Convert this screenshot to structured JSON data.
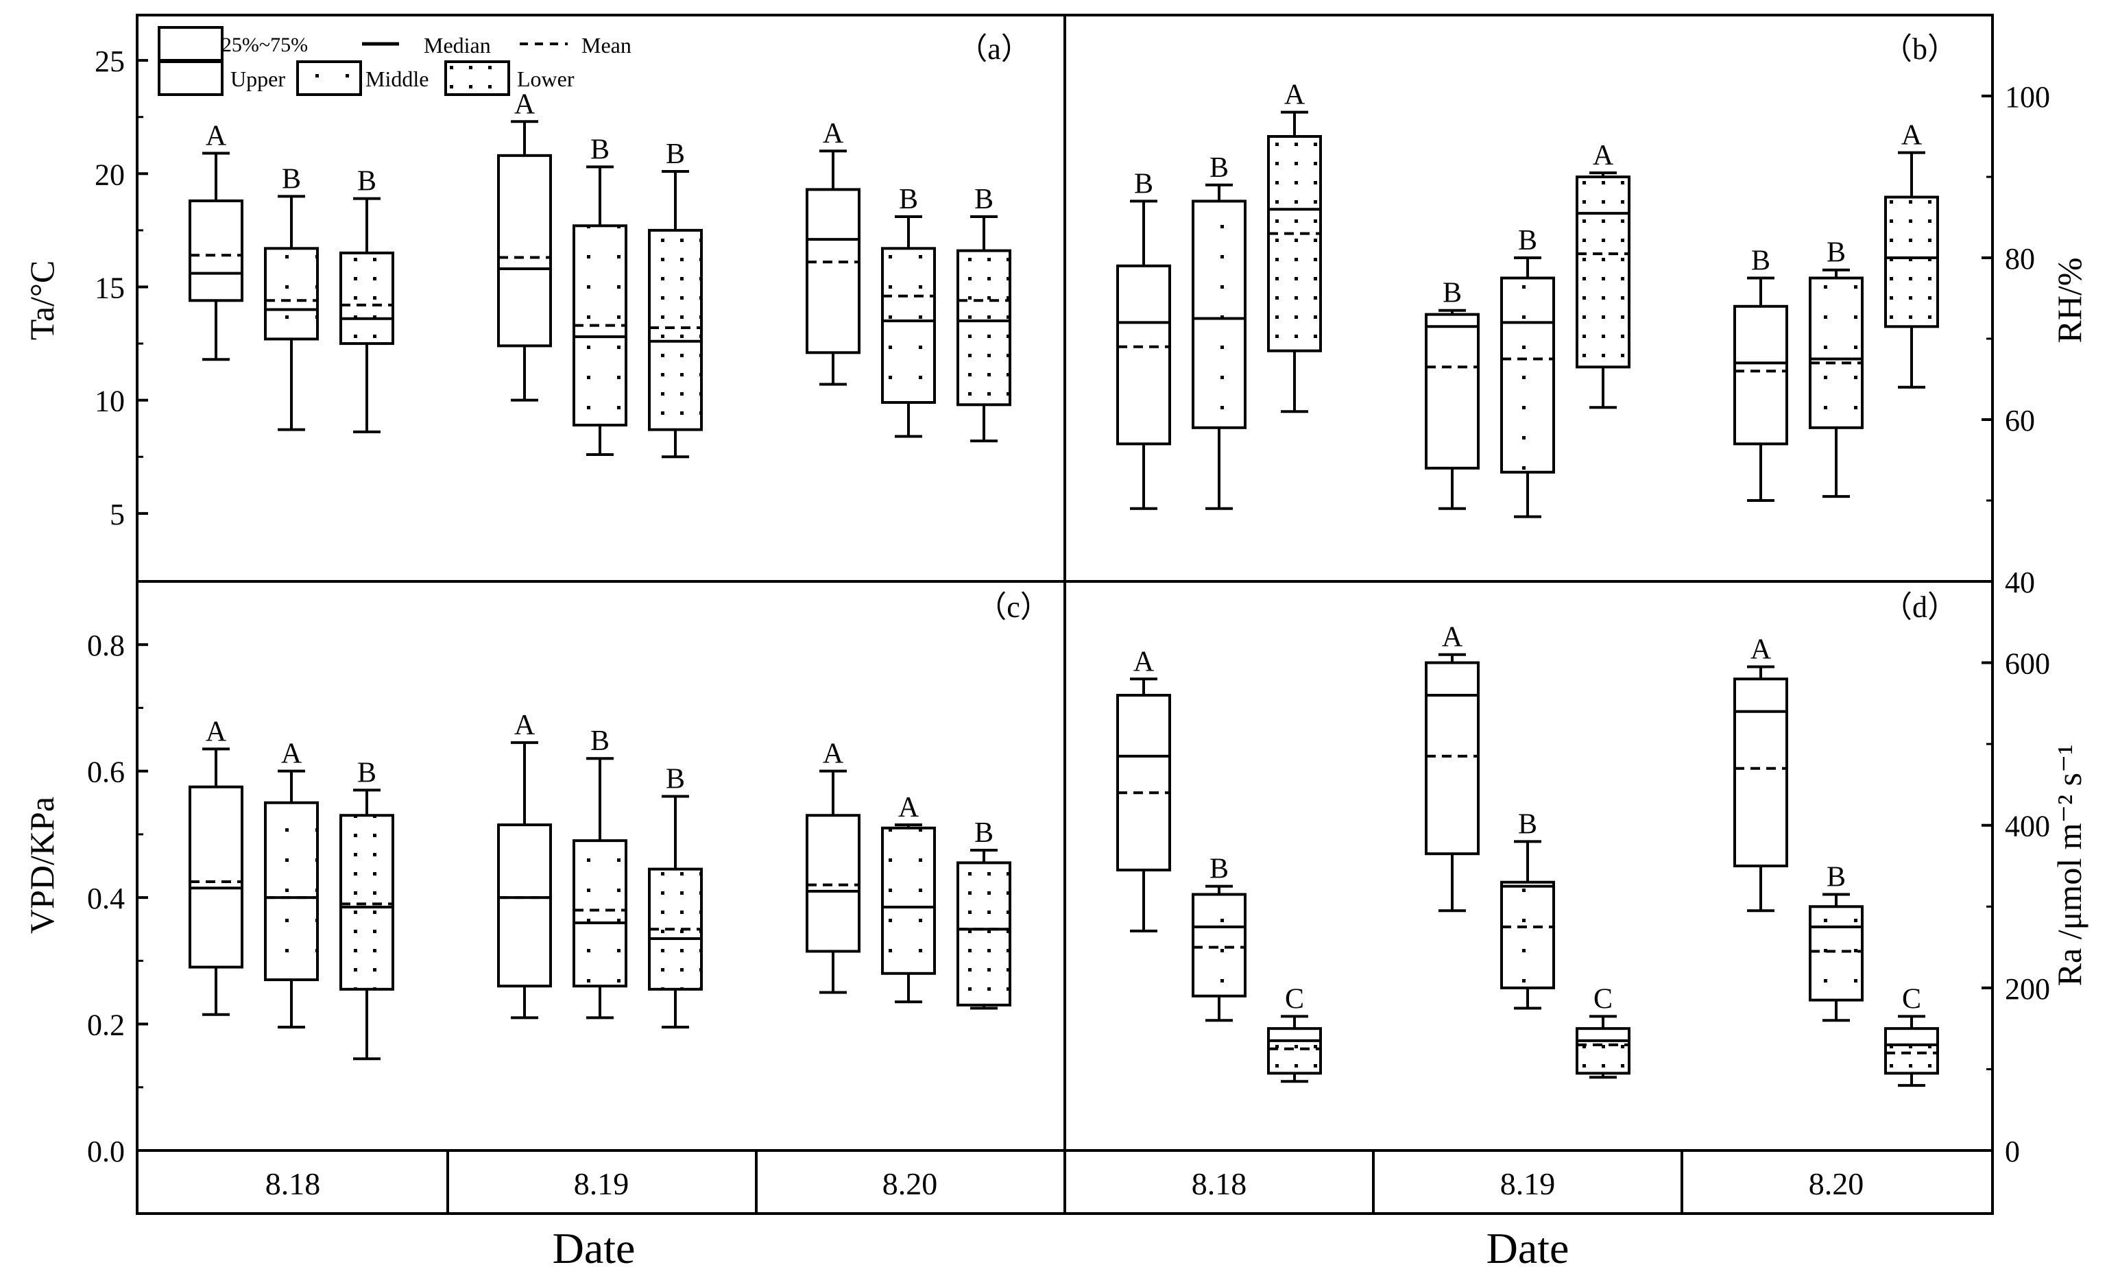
{
  "legend": {
    "box": "25%~75%",
    "median": "Median",
    "mean": "Mean",
    "upper": "Upper",
    "middle": "Middle",
    "lower": "Lower"
  },
  "x_axis": {
    "label": "Date",
    "dates": [
      "8.18",
      "8.19",
      "8.20"
    ]
  },
  "chart_data": [
    {
      "id": "a",
      "panel_label": "（a）",
      "type": "box",
      "ylabel": "Ta/°C",
      "ylim": [
        2,
        27
      ],
      "ticks": [
        5,
        10,
        15,
        20,
        25
      ],
      "tick_labels": [
        "5",
        "10",
        "15",
        "20",
        "25"
      ],
      "axis_side": "left",
      "categories": [
        "8.18",
        "8.19",
        "8.20"
      ],
      "series": [
        "Upper",
        "Middle",
        "Lower"
      ],
      "boxes": [
        {
          "date": "8.18",
          "layer": "Upper",
          "min": 11.8,
          "q1": 14.4,
          "median": 15.6,
          "mean": 16.4,
          "q3": 18.8,
          "max": 20.9,
          "letter": "A"
        },
        {
          "date": "8.18",
          "layer": "Middle",
          "min": 8.7,
          "q1": 12.7,
          "median": 14.0,
          "mean": 14.4,
          "q3": 16.7,
          "max": 19.0,
          "letter": "B"
        },
        {
          "date": "8.18",
          "layer": "Lower",
          "min": 8.6,
          "q1": 12.5,
          "median": 13.6,
          "mean": 14.2,
          "q3": 16.5,
          "max": 18.9,
          "letter": "B"
        },
        {
          "date": "8.19",
          "layer": "Upper",
          "min": 10.0,
          "q1": 12.4,
          "median": 15.8,
          "mean": 16.3,
          "q3": 20.8,
          "max": 22.3,
          "letter": "A"
        },
        {
          "date": "8.19",
          "layer": "Middle",
          "min": 7.6,
          "q1": 8.9,
          "median": 12.8,
          "mean": 13.3,
          "q3": 17.7,
          "max": 20.3,
          "letter": "B"
        },
        {
          "date": "8.19",
          "layer": "Lower",
          "min": 7.5,
          "q1": 8.7,
          "median": 12.6,
          "mean": 13.2,
          "q3": 17.5,
          "max": 20.1,
          "letter": "B"
        },
        {
          "date": "8.20",
          "layer": "Upper",
          "min": 10.7,
          "q1": 12.1,
          "median": 17.1,
          "mean": 16.1,
          "q3": 19.3,
          "max": 21.0,
          "letter": "A"
        },
        {
          "date": "8.20",
          "layer": "Middle",
          "min": 8.4,
          "q1": 9.9,
          "median": 13.5,
          "mean": 14.6,
          "q3": 16.7,
          "max": 18.1,
          "letter": "B"
        },
        {
          "date": "8.20",
          "layer": "Lower",
          "min": 8.2,
          "q1": 9.8,
          "median": 13.5,
          "mean": 14.4,
          "q3": 16.6,
          "max": 18.1,
          "letter": "B"
        }
      ]
    },
    {
      "id": "b",
      "panel_label": "（b）",
      "type": "box",
      "ylabel": "RH/%",
      "ylim": [
        40,
        110
      ],
      "ticks": [
        40,
        60,
        80,
        100
      ],
      "tick_labels": [
        "40",
        "60",
        "80",
        "100"
      ],
      "axis_side": "right",
      "categories": [
        "8.18",
        "8.19",
        "8.20"
      ],
      "series": [
        "Upper",
        "Middle",
        "Lower"
      ],
      "boxes": [
        {
          "date": "8.18",
          "layer": "Upper",
          "min": 49,
          "q1": 57,
          "median": 72,
          "mean": 69,
          "q3": 79,
          "max": 87,
          "letter": "B"
        },
        {
          "date": "8.18",
          "layer": "Middle",
          "min": 49,
          "q1": 59,
          "median": 72.5,
          "mean": 72.5,
          "q3": 87,
          "max": 89,
          "letter": "B"
        },
        {
          "date": "8.18",
          "layer": "Lower",
          "min": 61,
          "q1": 68.5,
          "median": 86,
          "mean": 83,
          "q3": 95,
          "max": 98,
          "letter": "A"
        },
        {
          "date": "8.19",
          "layer": "Upper",
          "min": 49,
          "q1": 54,
          "median": 71.5,
          "mean": 66.5,
          "q3": 73,
          "max": 73.5,
          "letter": "B"
        },
        {
          "date": "8.19",
          "layer": "Middle",
          "min": 48,
          "q1": 53.5,
          "median": 72,
          "mean": 67.5,
          "q3": 77.5,
          "max": 80,
          "letter": "B"
        },
        {
          "date": "8.19",
          "layer": "Lower",
          "min": 61.5,
          "q1": 66.5,
          "median": 85.5,
          "mean": 80.5,
          "q3": 90,
          "max": 90.5,
          "letter": "A"
        },
        {
          "date": "8.20",
          "layer": "Upper",
          "min": 50,
          "q1": 57,
          "median": 67,
          "mean": 66,
          "q3": 74,
          "max": 77.5,
          "letter": "B"
        },
        {
          "date": "8.20",
          "layer": "Middle",
          "min": 50.5,
          "q1": 59,
          "median": 67.5,
          "mean": 67,
          "q3": 77.5,
          "max": 78.5,
          "letter": "B"
        },
        {
          "date": "8.20",
          "layer": "Lower",
          "min": 64,
          "q1": 71.5,
          "median": 80,
          "mean": 80,
          "q3": 87.5,
          "max": 93,
          "letter": "A"
        }
      ]
    },
    {
      "id": "c",
      "panel_label": "（c）",
      "type": "box",
      "ylabel": "VPD/KPa",
      "ylim": [
        0,
        0.9
      ],
      "ticks": [
        0.0,
        0.2,
        0.4,
        0.6,
        0.8
      ],
      "tick_labels": [
        "0.0",
        "0.2",
        "0.4",
        "0.6",
        "0.8"
      ],
      "axis_side": "left",
      "categories": [
        "8.18",
        "8.19",
        "8.20"
      ],
      "series": [
        "Upper",
        "Middle",
        "Lower"
      ],
      "boxes": [
        {
          "date": "8.18",
          "layer": "Upper",
          "min": 0.215,
          "q1": 0.29,
          "median": 0.415,
          "mean": 0.425,
          "q3": 0.575,
          "max": 0.635,
          "letter": "A"
        },
        {
          "date": "8.18",
          "layer": "Middle",
          "min": 0.195,
          "q1": 0.27,
          "median": 0.4,
          "mean": 0.4,
          "q3": 0.55,
          "max": 0.6,
          "letter": "A"
        },
        {
          "date": "8.18",
          "layer": "Lower",
          "min": 0.145,
          "q1": 0.255,
          "median": 0.385,
          "mean": 0.39,
          "q3": 0.53,
          "max": 0.57,
          "letter": "B"
        },
        {
          "date": "8.19",
          "layer": "Upper",
          "min": 0.21,
          "q1": 0.26,
          "median": 0.4,
          "mean": 0.4,
          "q3": 0.515,
          "max": 0.645,
          "letter": "A"
        },
        {
          "date": "8.19",
          "layer": "Middle",
          "min": 0.21,
          "q1": 0.26,
          "median": 0.36,
          "mean": 0.38,
          "q3": 0.49,
          "max": 0.62,
          "letter": "B"
        },
        {
          "date": "8.19",
          "layer": "Lower",
          "min": 0.195,
          "q1": 0.255,
          "median": 0.335,
          "mean": 0.35,
          "q3": 0.445,
          "max": 0.56,
          "letter": "B"
        },
        {
          "date": "8.20",
          "layer": "Upper",
          "min": 0.25,
          "q1": 0.315,
          "median": 0.41,
          "mean": 0.42,
          "q3": 0.53,
          "max": 0.6,
          "letter": "A"
        },
        {
          "date": "8.20",
          "layer": "Middle",
          "min": 0.235,
          "q1": 0.28,
          "median": 0.385,
          "mean": 0.385,
          "q3": 0.51,
          "max": 0.515,
          "letter": "A"
        },
        {
          "date": "8.20",
          "layer": "Lower",
          "min": 0.225,
          "q1": 0.23,
          "median": 0.35,
          "mean": 0.35,
          "q3": 0.455,
          "max": 0.475,
          "letter": "B"
        }
      ]
    },
    {
      "id": "d",
      "panel_label": "（d）",
      "type": "box",
      "ylabel": "Ra /μmol m⁻² s⁻¹",
      "ylim": [
        0,
        700
      ],
      "ticks": [
        0,
        200,
        400,
        600
      ],
      "tick_labels": [
        "0",
        "200",
        "400",
        "600"
      ],
      "axis_side": "right",
      "categories": [
        "8.18",
        "8.19",
        "8.20"
      ],
      "series": [
        "Upper",
        "Middle",
        "Lower"
      ],
      "boxes": [
        {
          "date": "8.18",
          "layer": "Upper",
          "min": 270,
          "q1": 345,
          "median": 485,
          "mean": 440,
          "q3": 560,
          "max": 580,
          "letter": "A"
        },
        {
          "date": "8.18",
          "layer": "Middle",
          "min": 160,
          "q1": 190,
          "median": 275,
          "mean": 250,
          "q3": 315,
          "max": 325,
          "letter": "B"
        },
        {
          "date": "8.18",
          "layer": "Lower",
          "min": 85,
          "q1": 95,
          "median": 135,
          "mean": 125,
          "q3": 150,
          "max": 165,
          "letter": "C"
        },
        {
          "date": "8.19",
          "layer": "Upper",
          "min": 295,
          "q1": 365,
          "median": 560,
          "mean": 485,
          "q3": 600,
          "max": 610,
          "letter": "A"
        },
        {
          "date": "8.19",
          "layer": "Middle",
          "min": 175,
          "q1": 200,
          "median": 325,
          "mean": 275,
          "q3": 330,
          "max": 380,
          "letter": "B"
        },
        {
          "date": "8.19",
          "layer": "Lower",
          "min": 90,
          "q1": 95,
          "median": 135,
          "mean": 130,
          "q3": 150,
          "max": 165,
          "letter": "C"
        },
        {
          "date": "8.20",
          "layer": "Upper",
          "min": 295,
          "q1": 350,
          "median": 540,
          "mean": 470,
          "q3": 580,
          "max": 595,
          "letter": "A"
        },
        {
          "date": "8.20",
          "layer": "Middle",
          "min": 160,
          "q1": 185,
          "median": 275,
          "mean": 245,
          "q3": 300,
          "max": 315,
          "letter": "B"
        },
        {
          "date": "8.20",
          "layer": "Lower",
          "min": 80,
          "q1": 95,
          "median": 130,
          "mean": 120,
          "q3": 150,
          "max": 165,
          "letter": "C"
        }
      ]
    }
  ]
}
